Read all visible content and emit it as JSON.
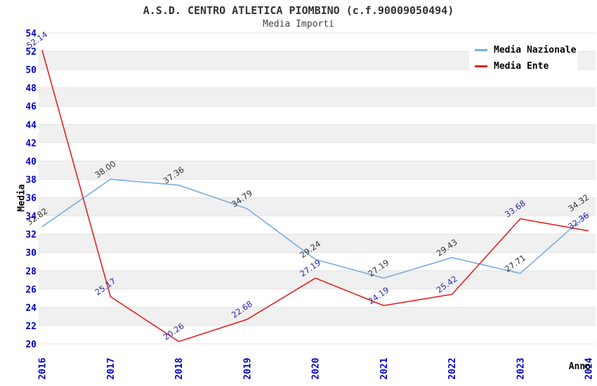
{
  "title": "A.S.D. CENTRO ATLETICA PIOMBINO (c.f.90009050494)",
  "subtitle": "Media Importi",
  "chart_data": {
    "type": "line",
    "x": [
      2016,
      2017,
      2018,
      2019,
      2020,
      2021,
      2022,
      2023,
      2024
    ],
    "xlabel": "Anno",
    "ylabel": "Media",
    "ylim": [
      20,
      54
    ],
    "ytick_step": 2,
    "grid": "alternating horizontal bands",
    "legend_position": "top-right",
    "tick_color": "#0000cd",
    "band_colors": [
      "#ffffff",
      "#f0f0f0"
    ],
    "gridline_color": "#e4e4e4",
    "series": [
      {
        "name": "Media Nazionale",
        "color": "#7aaede",
        "label_color": "#333333",
        "values": [
          32.82,
          38.0,
          37.36,
          34.79,
          29.24,
          27.19,
          29.43,
          27.71,
          34.32
        ]
      },
      {
        "name": "Media Ente",
        "color": "#e32222",
        "label_color": "#2a2aa6",
        "values": [
          52.14,
          25.17,
          20.26,
          22.68,
          27.19,
          24.19,
          25.42,
          33.68,
          32.36
        ]
      }
    ]
  }
}
